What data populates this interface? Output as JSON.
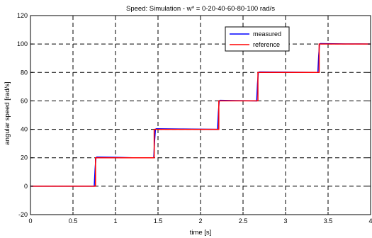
{
  "chart_data": {
    "type": "line",
    "title": "Speed: Simulation - w* = 0-20-40-60-80-100 rad/s",
    "xlabel": "time [s]",
    "ylabel": "angular speed [rad/s]",
    "xlim": [
      0,
      4
    ],
    "ylim": [
      -20,
      120
    ],
    "xticks": [
      0,
      0.5,
      1,
      1.5,
      2,
      2.5,
      3,
      3.5,
      4
    ],
    "xtick_labels": [
      "0",
      "0.5",
      "1",
      "1.5",
      "2",
      "2.5",
      "3",
      "3.5",
      "4"
    ],
    "yticks": [
      -20,
      0,
      20,
      40,
      60,
      80,
      100,
      120
    ],
    "ytick_labels": [
      "-20",
      "0",
      "20",
      "40",
      "60",
      "80",
      "100",
      "120"
    ],
    "grid": true,
    "legend_position": "top-right",
    "series": [
      {
        "name": "measured",
        "color": "#0000ff",
        "x": [
          0,
          0.75,
          0.76,
          0.77,
          0.78,
          1.0,
          1.2,
          1.45,
          1.46,
          1.47,
          1.48,
          1.8,
          2.2,
          2.21,
          2.22,
          2.23,
          2.4,
          2.66,
          2.67,
          2.68,
          2.69,
          3.0,
          3.38,
          3.39,
          3.4,
          3.41,
          3.7,
          4.0
        ],
        "y": [
          0,
          0,
          12,
          20,
          20.5,
          20.3,
          20,
          20,
          32,
          40,
          40.4,
          40.2,
          40,
          52,
          60,
          60.4,
          60.2,
          60,
          72,
          80,
          80.3,
          80.2,
          80,
          92,
          100,
          100.3,
          100.1,
          100
        ]
      },
      {
        "name": "reference",
        "color": "#ff0000",
        "x": [
          0,
          0.765,
          0.765,
          1.455,
          1.455,
          2.215,
          2.215,
          2.675,
          2.675,
          3.395,
          3.395,
          4.0
        ],
        "y": [
          0,
          0,
          20,
          20,
          40,
          40,
          60,
          60,
          80,
          80,
          100,
          100
        ]
      }
    ]
  }
}
